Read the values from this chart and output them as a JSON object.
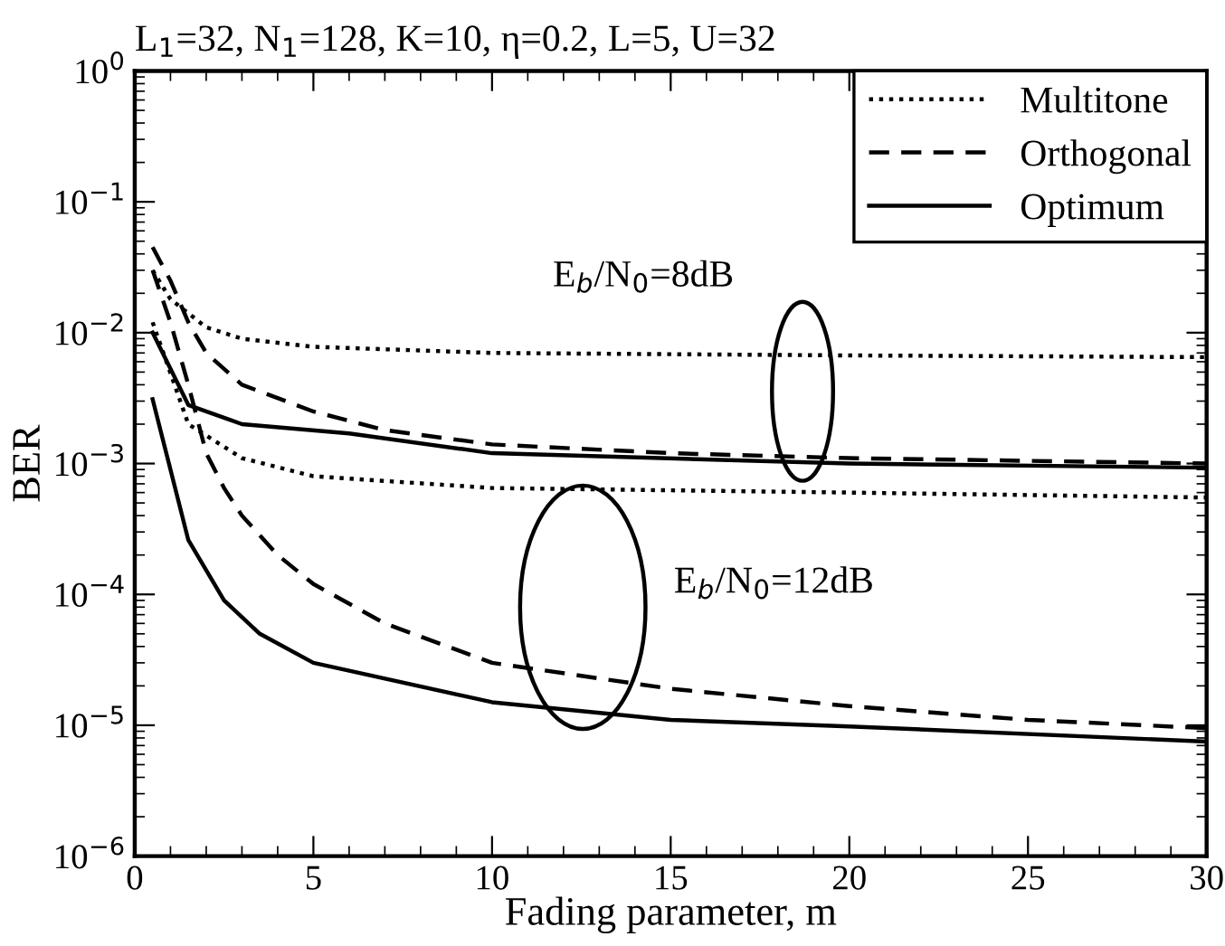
{
  "chart_data": {
    "type": "line",
    "title": "L$_{1}$=32, N$_{1}$=128, K=10, η=0.2, L=5, U=32",
    "xlabel": "Fading parameter, m",
    "ylabel": "BER",
    "log": "y",
    "xlim": [
      0,
      30
    ],
    "xticks": [
      0,
      5,
      10,
      15,
      20,
      25,
      30
    ],
    "ylim": [
      1e-06,
      1
    ],
    "yticks": [
      {
        "value": 1e-06,
        "label": "10$^{−6}$"
      },
      {
        "value": 1e-05,
        "label": "10$^{−5}$"
      },
      {
        "value": 0.0001,
        "label": "10$^{−4}$"
      },
      {
        "value": 0.001,
        "label": "10$^{−3}$"
      },
      {
        "value": 0.01,
        "label": "10$^{−2}$"
      },
      {
        "value": 0.1,
        "label": "10$^{−1}$"
      },
      {
        "value": 1,
        "label": "10$^{0}$"
      }
    ],
    "grid": false,
    "legend": "top right",
    "marker": "none",
    "annotations": [
      "E$_{b}$/N$_{0}$=8dB",
      "E$_{b}$/N$_{0}$=12dB"
    ],
    "series": [
      {
        "name": "Multitone",
        "color": "#000000",
        "line_style": "dotted",
        "x": [
          0.5,
          1,
          2,
          3,
          5,
          10,
          20,
          30
        ],
        "values": [
          0.03,
          0.018,
          0.011,
          0.009,
          0.0078,
          0.007,
          0.0067,
          0.0065
        ]
      },
      {
        "name": "Orthogonal",
        "color": "#000000",
        "line_style": "dashed",
        "x": [
          0.5,
          1,
          1.5,
          2,
          3,
          5,
          7,
          10,
          15,
          20,
          30
        ],
        "values": [
          0.045,
          0.025,
          0.012,
          0.007,
          0.004,
          0.0025,
          0.0018,
          0.0014,
          0.0012,
          0.0011,
          0.001
        ]
      },
      {
        "name": "Optimum",
        "color": "#000000",
        "line_style": "solid",
        "x": [
          0.5,
          1.5,
          3,
          6,
          10,
          20,
          30
        ],
        "values": [
          0.01,
          0.0028,
          0.002,
          0.0017,
          0.0012,
          0.001,
          0.00093
        ]
      },
      {
        "color": "#000000",
        "line_style": "dotted",
        "x": [
          0.5,
          1.5,
          3,
          5,
          10,
          20,
          30
        ],
        "values": [
          0.012,
          0.002,
          0.0011,
          0.0008,
          0.00065,
          0.0006,
          0.00055
        ]
      },
      {
        "color": "#000000",
        "line_style": "dashed",
        "x": [
          0.5,
          1,
          1.5,
          2,
          2.5,
          3,
          4,
          5,
          7,
          10,
          15,
          20,
          25,
          30
        ],
        "values": [
          0.03,
          0.012,
          0.004,
          0.0012,
          0.00065,
          0.0004,
          0.0002,
          0.00012,
          6e-05,
          3e-05,
          1.9e-05,
          1.4e-05,
          1.1e-05,
          9.5e-06
        ]
      },
      {
        "color": "#000000",
        "line_style": "solid",
        "x": [
          0.5,
          1.5,
          2.5,
          3.5,
          5,
          10,
          15,
          20,
          30
        ],
        "values": [
          0.0031,
          0.00026,
          9e-05,
          5e-05,
          3e-05,
          1.5e-05,
          1.1e-05,
          9.8e-06,
          7.5e-06
        ]
      }
    ]
  }
}
